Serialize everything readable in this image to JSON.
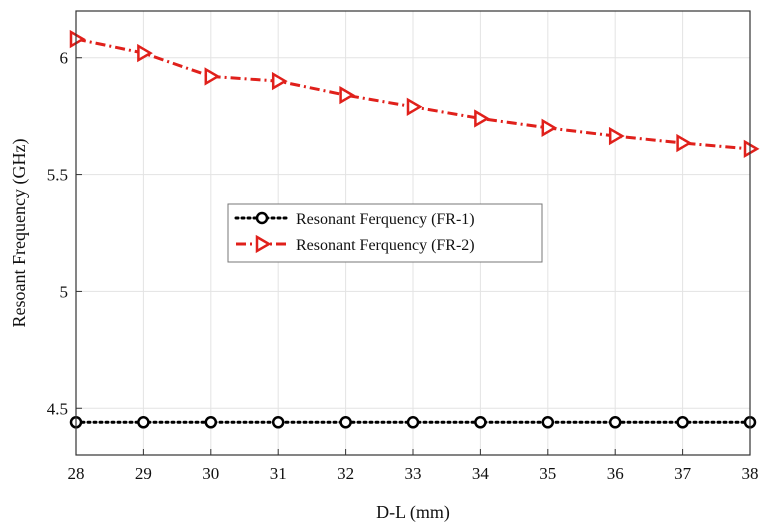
{
  "chart_data": {
    "type": "line",
    "title": "",
    "xlabel": "D-L (mm)",
    "ylabel": "Resoant Frequency (GHz)",
    "x": [
      28,
      29,
      30,
      31,
      32,
      33,
      34,
      35,
      36,
      37,
      38
    ],
    "xlim": [
      28,
      38
    ],
    "ylim": [
      4.3,
      6.2
    ],
    "xticks": [
      "28",
      "29",
      "30",
      "31",
      "32",
      "33",
      "34",
      "35",
      "36",
      "37",
      "38"
    ],
    "yticks": [
      "4.5",
      "5",
      "5.5",
      "6"
    ],
    "grid": true,
    "legend_position": "center-left",
    "series": [
      {
        "name": "Resonant Ferquency (FR-1)",
        "values": [
          4.44,
          4.44,
          4.44,
          4.44,
          4.44,
          4.44,
          4.44,
          4.44,
          4.44,
          4.44,
          4.44
        ],
        "color": "#000000",
        "line_style": "dotted",
        "marker": "circle"
      },
      {
        "name": "Resonant Ferquency (FR-2)",
        "values": [
          6.08,
          6.02,
          5.92,
          5.9,
          5.84,
          5.79,
          5.74,
          5.7,
          5.665,
          5.635,
          5.61
        ],
        "color": "#e0201b",
        "line_style": "dashdot",
        "marker": "triangle-right"
      }
    ]
  }
}
